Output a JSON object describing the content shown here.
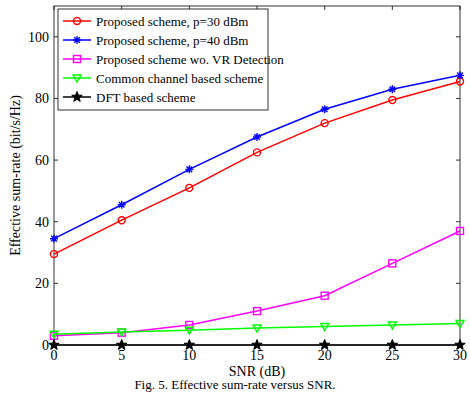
{
  "chart_data": {
    "type": "line",
    "title": "Fig. 5. Effective sum-rate versus SNR.",
    "x_label": "SNR (dB)",
    "y_label": "Effective sum-rate (bit/s/Hz)",
    "x": [
      0,
      5,
      10,
      15,
      20,
      25,
      30
    ],
    "xlim": [
      0,
      30
    ],
    "xticks": [
      0,
      5,
      10,
      15,
      20,
      25,
      30
    ],
    "ylim": [
      0,
      110
    ],
    "yticks": [
      0,
      20,
      40,
      60,
      80,
      100
    ],
    "grid": false,
    "legend": "upper-left",
    "series": [
      {
        "name": "Proposed scheme, p=30 dBm",
        "color": "#ff0000",
        "marker": "circle",
        "values": [
          29.5,
          40.5,
          51,
          62.5,
          72,
          79.5,
          85.5
        ]
      },
      {
        "name": "Proposed scheme, p=40 dBm",
        "color": "#0000ff",
        "marker": "asterisk",
        "values": [
          34.5,
          45.5,
          57,
          67.5,
          76.5,
          83,
          87.5
        ]
      },
      {
        "name": "Proposed scheme wo. VR Detection",
        "color": "#ff00ff",
        "marker": "square",
        "values": [
          3,
          4,
          6.5,
          11,
          16,
          26.5,
          37
        ]
      },
      {
        "name": "Common channel based scheme",
        "color": "#00ff00",
        "marker": "triangle-down",
        "values": [
          3.5,
          4.2,
          4.8,
          5.5,
          6,
          6.5,
          7
        ]
      },
      {
        "name": "DFT based scheme",
        "color": "#000000",
        "marker": "star",
        "values": [
          0,
          0,
          0,
          0,
          0,
          0,
          0
        ]
      }
    ]
  }
}
